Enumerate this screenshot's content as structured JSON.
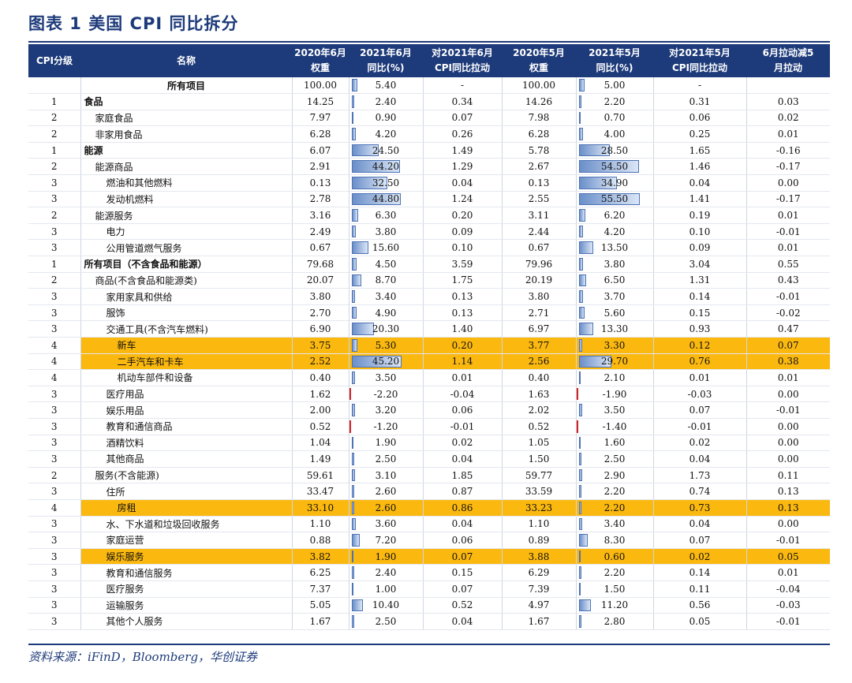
{
  "title": "图表 1   美国 CPI 同比拆分",
  "source": "资料来源：iFinD，Bloomberg，华创证券",
  "colors": {
    "header_bg": "#1d3a7a",
    "highlight": "#fbb80f",
    "bar": "#6b8fc9",
    "neg_bar": "#d32222"
  },
  "headers": [
    [
      "CPI分级"
    ],
    [
      "名称"
    ],
    [
      "2020年6月",
      "权重"
    ],
    [
      "2021年6月",
      "同比(%)"
    ],
    [
      "对2021年6月",
      "CPI同比拉动"
    ],
    [
      "2020年5月",
      "权重"
    ],
    [
      "2021年5月",
      "同比(%)"
    ],
    [
      "对2021年5月",
      "CPI同比拉动"
    ],
    [
      "6月拉动减5",
      "月拉动"
    ]
  ],
  "rows": [
    {
      "level": "",
      "name": "所有项目",
      "indent": 0,
      "bold": true,
      "center": true,
      "hl": false,
      "w6": "100.00",
      "y6": "5.40",
      "y6n": 5.4,
      "c6": "-",
      "w5": "100.00",
      "y5": "5.00",
      "y5n": 5.0,
      "c5": "-",
      "d": ""
    },
    {
      "level": "1",
      "name": "食品",
      "indent": 0,
      "bold": true,
      "hl": false,
      "w6": "14.25",
      "y6": "2.40",
      "y6n": 2.4,
      "c6": "0.34",
      "w5": "14.26",
      "y5": "2.20",
      "y5n": 2.2,
      "c5": "0.31",
      "d": "0.03"
    },
    {
      "level": "2",
      "name": "家庭食品",
      "indent": 1,
      "bold": false,
      "hl": false,
      "w6": "7.97",
      "y6": "0.90",
      "y6n": 0.9,
      "c6": "0.07",
      "w5": "7.98",
      "y5": "0.70",
      "y5n": 0.7,
      "c5": "0.06",
      "d": "0.02"
    },
    {
      "level": "2",
      "name": "非家用食品",
      "indent": 1,
      "bold": false,
      "hl": false,
      "w6": "6.28",
      "y6": "4.20",
      "y6n": 4.2,
      "c6": "0.26",
      "w5": "6.28",
      "y5": "4.00",
      "y5n": 4.0,
      "c5": "0.25",
      "d": "0.01"
    },
    {
      "level": "1",
      "name": "能源",
      "indent": 0,
      "bold": true,
      "hl": false,
      "w6": "6.07",
      "y6": "24.50",
      "y6n": 24.5,
      "c6": "1.49",
      "w5": "5.78",
      "y5": "28.50",
      "y5n": 28.5,
      "c5": "1.65",
      "d": "-0.16"
    },
    {
      "level": "2",
      "name": "能源商品",
      "indent": 1,
      "bold": false,
      "hl": false,
      "w6": "2.91",
      "y6": "44.20",
      "y6n": 44.2,
      "c6": "1.29",
      "w5": "2.67",
      "y5": "54.50",
      "y5n": 54.5,
      "c5": "1.46",
      "d": "-0.17"
    },
    {
      "level": "3",
      "name": "燃油和其他燃料",
      "indent": 2,
      "bold": false,
      "hl": false,
      "w6": "0.13",
      "y6": "32.50",
      "y6n": 32.5,
      "c6": "0.04",
      "w5": "0.13",
      "y5": "34.90",
      "y5n": 34.9,
      "c5": "0.04",
      "d": "0.00"
    },
    {
      "level": "3",
      "name": "发动机燃料",
      "indent": 2,
      "bold": false,
      "hl": false,
      "w6": "2.78",
      "y6": "44.80",
      "y6n": 44.8,
      "c6": "1.24",
      "w5": "2.55",
      "y5": "55.50",
      "y5n": 55.5,
      "c5": "1.41",
      "d": "-0.17"
    },
    {
      "level": "2",
      "name": "能源服务",
      "indent": 1,
      "bold": false,
      "hl": false,
      "w6": "3.16",
      "y6": "6.30",
      "y6n": 6.3,
      "c6": "0.20",
      "w5": "3.11",
      "y5": "6.20",
      "y5n": 6.2,
      "c5": "0.19",
      "d": "0.01"
    },
    {
      "level": "3",
      "name": "电力",
      "indent": 2,
      "bold": false,
      "hl": false,
      "w6": "2.49",
      "y6": "3.80",
      "y6n": 3.8,
      "c6": "0.09",
      "w5": "2.44",
      "y5": "4.20",
      "y5n": 4.2,
      "c5": "0.10",
      "d": "-0.01"
    },
    {
      "level": "3",
      "name": "公用管道燃气服务",
      "indent": 2,
      "bold": false,
      "hl": false,
      "w6": "0.67",
      "y6": "15.60",
      "y6n": 15.6,
      "c6": "0.10",
      "w5": "0.67",
      "y5": "13.50",
      "y5n": 13.5,
      "c5": "0.09",
      "d": "0.01"
    },
    {
      "level": "1",
      "name": "所有项目（不含食品和能源）",
      "indent": 0,
      "bold": true,
      "hl": false,
      "w6": "79.68",
      "y6": "4.50",
      "y6n": 4.5,
      "c6": "3.59",
      "w5": "79.96",
      "y5": "3.80",
      "y5n": 3.8,
      "c5": "3.04",
      "d": "0.55"
    },
    {
      "level": "2",
      "name": "商品(不含食品和能源类)",
      "indent": 1,
      "bold": false,
      "hl": false,
      "w6": "20.07",
      "y6": "8.70",
      "y6n": 8.7,
      "c6": "1.75",
      "w5": "20.19",
      "y5": "6.50",
      "y5n": 6.5,
      "c5": "1.31",
      "d": "0.43"
    },
    {
      "level": "3",
      "name": "家用家具和供给",
      "indent": 2,
      "bold": false,
      "hl": false,
      "w6": "3.80",
      "y6": "3.40",
      "y6n": 3.4,
      "c6": "0.13",
      "w5": "3.80",
      "y5": "3.70",
      "y5n": 3.7,
      "c5": "0.14",
      "d": "-0.01"
    },
    {
      "level": "3",
      "name": "服饰",
      "indent": 2,
      "bold": false,
      "hl": false,
      "w6": "2.70",
      "y6": "4.90",
      "y6n": 4.9,
      "c6": "0.13",
      "w5": "2.71",
      "y5": "5.60",
      "y5n": 5.6,
      "c5": "0.15",
      "d": "-0.02"
    },
    {
      "level": "3",
      "name": "交通工具(不含汽车燃料)",
      "indent": 2,
      "bold": false,
      "hl": false,
      "w6": "6.90",
      "y6": "20.30",
      "y6n": 20.3,
      "c6": "1.40",
      "w5": "6.97",
      "y5": "13.30",
      "y5n": 13.3,
      "c5": "0.93",
      "d": "0.47"
    },
    {
      "level": "4",
      "name": "新车",
      "indent": 3,
      "bold": false,
      "hl": true,
      "w6": "3.75",
      "y6": "5.30",
      "y6n": 5.3,
      "c6": "0.20",
      "w5": "3.77",
      "y5": "3.30",
      "y5n": 3.3,
      "c5": "0.12",
      "d": "0.07"
    },
    {
      "level": "4",
      "name": "二手汽车和卡车",
      "indent": 3,
      "bold": false,
      "hl": true,
      "w6": "2.52",
      "y6": "45.20",
      "y6n": 45.2,
      "c6": "1.14",
      "w5": "2.56",
      "y5": "29.70",
      "y5n": 29.7,
      "c5": "0.76",
      "d": "0.38"
    },
    {
      "level": "4",
      "name": "机动车部件和设备",
      "indent": 3,
      "bold": false,
      "hl": false,
      "w6": "0.40",
      "y6": "3.50",
      "y6n": 3.5,
      "c6": "0.01",
      "w5": "0.40",
      "y5": "2.10",
      "y5n": 2.1,
      "c5": "0.01",
      "d": "0.01"
    },
    {
      "level": "3",
      "name": "医疗用品",
      "indent": 2,
      "bold": false,
      "hl": false,
      "w6": "1.62",
      "y6": "-2.20",
      "y6n": -2.2,
      "c6": "-0.04",
      "w5": "1.63",
      "y5": "-1.90",
      "y5n": -1.9,
      "c5": "-0.03",
      "d": "0.00"
    },
    {
      "level": "3",
      "name": "娱乐用品",
      "indent": 2,
      "bold": false,
      "hl": false,
      "w6": "2.00",
      "y6": "3.20",
      "y6n": 3.2,
      "c6": "0.06",
      "w5": "2.02",
      "y5": "3.50",
      "y5n": 3.5,
      "c5": "0.07",
      "d": "-0.01"
    },
    {
      "level": "3",
      "name": "教育和通信商品",
      "indent": 2,
      "bold": false,
      "hl": false,
      "w6": "0.52",
      "y6": "-1.20",
      "y6n": -1.2,
      "c6": "-0.01",
      "w5": "0.52",
      "y5": "-1.40",
      "y5n": -1.4,
      "c5": "-0.01",
      "d": "0.00"
    },
    {
      "level": "3",
      "name": "酒精饮料",
      "indent": 2,
      "bold": false,
      "hl": false,
      "w6": "1.04",
      "y6": "1.90",
      "y6n": 1.9,
      "c6": "0.02",
      "w5": "1.05",
      "y5": "1.60",
      "y5n": 1.6,
      "c5": "0.02",
      "d": "0.00"
    },
    {
      "level": "3",
      "name": "其他商品",
      "indent": 2,
      "bold": false,
      "hl": false,
      "w6": "1.49",
      "y6": "2.50",
      "y6n": 2.5,
      "c6": "0.04",
      "w5": "1.50",
      "y5": "2.50",
      "y5n": 2.5,
      "c5": "0.04",
      "d": "0.00"
    },
    {
      "level": "2",
      "name": "服务(不含能源)",
      "indent": 1,
      "bold": false,
      "hl": false,
      "w6": "59.61",
      "y6": "3.10",
      "y6n": 3.1,
      "c6": "1.85",
      "w5": "59.77",
      "y5": "2.90",
      "y5n": 2.9,
      "c5": "1.73",
      "d": "0.11"
    },
    {
      "level": "3",
      "name": "住所",
      "indent": 2,
      "bold": false,
      "hl": false,
      "w6": "33.47",
      "y6": "2.60",
      "y6n": 2.6,
      "c6": "0.87",
      "w5": "33.59",
      "y5": "2.20",
      "y5n": 2.2,
      "c5": "0.74",
      "d": "0.13"
    },
    {
      "level": "4",
      "name": "房租",
      "indent": 3,
      "bold": false,
      "hl": true,
      "w6": "33.10",
      "y6": "2.60",
      "y6n": 2.6,
      "c6": "0.86",
      "w5": "33.23",
      "y5": "2.20",
      "y5n": 2.2,
      "c5": "0.73",
      "d": "0.13"
    },
    {
      "level": "3",
      "name": "水、下水道和垃圾回收服务",
      "indent": 2,
      "bold": false,
      "hl": false,
      "w6": "1.10",
      "y6": "3.60",
      "y6n": 3.6,
      "c6": "0.04",
      "w5": "1.10",
      "y5": "3.40",
      "y5n": 3.4,
      "c5": "0.04",
      "d": "0.00"
    },
    {
      "level": "3",
      "name": "家庭运营",
      "indent": 2,
      "bold": false,
      "hl": false,
      "w6": "0.88",
      "y6": "7.20",
      "y6n": 7.2,
      "c6": "0.06",
      "w5": "0.89",
      "y5": "8.30",
      "y5n": 8.3,
      "c5": "0.07",
      "d": "-0.01"
    },
    {
      "level": "3",
      "name": "娱乐服务",
      "indent": 2,
      "bold": false,
      "hl": true,
      "w6": "3.82",
      "y6": "1.90",
      "y6n": 1.9,
      "c6": "0.07",
      "w5": "3.88",
      "y5": "0.60",
      "y5n": 0.6,
      "c5": "0.02",
      "d": "0.05"
    },
    {
      "level": "3",
      "name": "教育和通信服务",
      "indent": 2,
      "bold": false,
      "hl": false,
      "w6": "6.25",
      "y6": "2.40",
      "y6n": 2.4,
      "c6": "0.15",
      "w5": "6.29",
      "y5": "2.20",
      "y5n": 2.2,
      "c5": "0.14",
      "d": "0.01"
    },
    {
      "level": "3",
      "name": "医疗服务",
      "indent": 2,
      "bold": false,
      "hl": false,
      "w6": "7.37",
      "y6": "1.00",
      "y6n": 1.0,
      "c6": "0.07",
      "w5": "7.39",
      "y5": "1.50",
      "y5n": 1.5,
      "c5": "0.11",
      "d": "-0.04"
    },
    {
      "level": "3",
      "name": "运输服务",
      "indent": 2,
      "bold": false,
      "hl": false,
      "w6": "5.05",
      "y6": "10.40",
      "y6n": 10.4,
      "c6": "0.52",
      "w5": "4.97",
      "y5": "11.20",
      "y5n": 11.2,
      "c5": "0.56",
      "d": "-0.03"
    },
    {
      "level": "3",
      "name": "其他个人服务",
      "indent": 2,
      "bold": false,
      "hl": false,
      "w6": "1.67",
      "y6": "2.50",
      "y6n": 2.5,
      "c6": "0.04",
      "w5": "1.67",
      "y5": "2.80",
      "y5n": 2.8,
      "c5": "0.05",
      "d": "-0.01"
    }
  ]
}
